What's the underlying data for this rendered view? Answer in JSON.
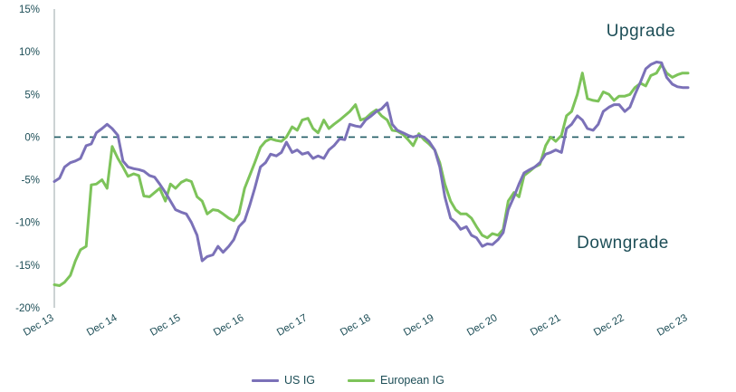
{
  "chart_data": {
    "type": "line",
    "ylim": [
      -20,
      15
    ],
    "y_ticks": [
      "15%",
      "10%",
      "5%",
      "0%",
      "-5%",
      "-10%",
      "-15%",
      "-20%"
    ],
    "x_ticks": [
      "Dec 13",
      "Dec 14",
      "Dec 15",
      "Dec 16",
      "Dec 17",
      "Dec 18",
      "Dec 19",
      "Dec 20",
      "Dec 21",
      "Dec 22",
      "Dec 23"
    ],
    "x_range_years": [
      2013.917,
      2023.917
    ],
    "reference_line": 0,
    "annotations": {
      "upper": "Upgrade",
      "lower": "Downgrade"
    },
    "legend_position": "bottom",
    "series": [
      {
        "name": "US IG",
        "color": "#7b71b8",
        "points": [
          [
            2013.917,
            -5.2
          ],
          [
            2014.0,
            -4.8
          ],
          [
            2014.08,
            -3.5
          ],
          [
            2014.17,
            -3.0
          ],
          [
            2014.25,
            -2.8
          ],
          [
            2014.33,
            -2.5
          ],
          [
            2014.42,
            -1.0
          ],
          [
            2014.5,
            -0.8
          ],
          [
            2014.58,
            0.5
          ],
          [
            2014.67,
            1.0
          ],
          [
            2014.75,
            1.5
          ],
          [
            2014.83,
            1.0
          ],
          [
            2014.92,
            0.2
          ],
          [
            2015.0,
            -2.8
          ],
          [
            2015.08,
            -3.5
          ],
          [
            2015.17,
            -3.7
          ],
          [
            2015.25,
            -3.8
          ],
          [
            2015.33,
            -4.0
          ],
          [
            2015.42,
            -4.5
          ],
          [
            2015.5,
            -4.7
          ],
          [
            2015.58,
            -5.5
          ],
          [
            2015.67,
            -6.5
          ],
          [
            2015.75,
            -7.5
          ],
          [
            2015.83,
            -8.5
          ],
          [
            2015.92,
            -8.8
          ],
          [
            2016.0,
            -9.0
          ],
          [
            2016.08,
            -10.0
          ],
          [
            2016.17,
            -11.5
          ],
          [
            2016.25,
            -14.5
          ],
          [
            2016.33,
            -14.0
          ],
          [
            2016.42,
            -13.8
          ],
          [
            2016.5,
            -12.8
          ],
          [
            2016.58,
            -13.5
          ],
          [
            2016.67,
            -12.8
          ],
          [
            2016.75,
            -12.0
          ],
          [
            2016.83,
            -10.5
          ],
          [
            2016.92,
            -9.8
          ],
          [
            2017.0,
            -8.0
          ],
          [
            2017.08,
            -6.0
          ],
          [
            2017.17,
            -3.5
          ],
          [
            2017.25,
            -3.0
          ],
          [
            2017.33,
            -2.0
          ],
          [
            2017.42,
            -2.2
          ],
          [
            2017.5,
            -1.8
          ],
          [
            2017.58,
            -0.6
          ],
          [
            2017.67,
            -1.8
          ],
          [
            2017.75,
            -1.5
          ],
          [
            2017.83,
            -2.0
          ],
          [
            2017.92,
            -1.8
          ],
          [
            2018.0,
            -2.5
          ],
          [
            2018.08,
            -2.2
          ],
          [
            2018.17,
            -2.5
          ],
          [
            2018.25,
            -1.5
          ],
          [
            2018.33,
            -1.0
          ],
          [
            2018.42,
            -0.2
          ],
          [
            2018.5,
            -0.3
          ],
          [
            2018.58,
            1.5
          ],
          [
            2018.67,
            1.3
          ],
          [
            2018.75,
            1.2
          ],
          [
            2018.83,
            2.0
          ],
          [
            2018.92,
            2.5
          ],
          [
            2019.0,
            3.0
          ],
          [
            2019.08,
            3.3
          ],
          [
            2019.17,
            4.0
          ],
          [
            2019.25,
            1.5
          ],
          [
            2019.33,
            0.8
          ],
          [
            2019.42,
            0.5
          ],
          [
            2019.5,
            0.2
          ],
          [
            2019.58,
            0.0
          ],
          [
            2019.67,
            0.2
          ],
          [
            2019.75,
            0.0
          ],
          [
            2019.83,
            -0.5
          ],
          [
            2019.92,
            -1.5
          ],
          [
            2020.0,
            -3.5
          ],
          [
            2020.08,
            -7.0
          ],
          [
            2020.17,
            -9.5
          ],
          [
            2020.25,
            -10.0
          ],
          [
            2020.33,
            -10.8
          ],
          [
            2020.42,
            -10.5
          ],
          [
            2020.5,
            -11.5
          ],
          [
            2020.58,
            -11.8
          ],
          [
            2020.67,
            -12.8
          ],
          [
            2020.75,
            -12.5
          ],
          [
            2020.83,
            -12.6
          ],
          [
            2020.92,
            -12.0
          ],
          [
            2021.0,
            -11.2
          ],
          [
            2021.08,
            -8.5
          ],
          [
            2021.17,
            -7.0
          ],
          [
            2021.25,
            -5.5
          ],
          [
            2021.33,
            -4.2
          ],
          [
            2021.42,
            -3.8
          ],
          [
            2021.5,
            -3.5
          ],
          [
            2021.58,
            -3.0
          ],
          [
            2021.67,
            -2.0
          ],
          [
            2021.75,
            -1.8
          ],
          [
            2021.83,
            -1.5
          ],
          [
            2021.92,
            -1.8
          ],
          [
            2022.0,
            1.0
          ],
          [
            2022.08,
            1.5
          ],
          [
            2022.17,
            2.5
          ],
          [
            2022.25,
            2.0
          ],
          [
            2022.33,
            1.0
          ],
          [
            2022.42,
            0.8
          ],
          [
            2022.5,
            1.5
          ],
          [
            2022.58,
            3.0
          ],
          [
            2022.67,
            3.5
          ],
          [
            2022.75,
            3.8
          ],
          [
            2022.83,
            3.8
          ],
          [
            2022.92,
            3.0
          ],
          [
            2023.0,
            3.5
          ],
          [
            2023.08,
            5.0
          ],
          [
            2023.17,
            6.5
          ],
          [
            2023.25,
            8.0
          ],
          [
            2023.33,
            8.5
          ],
          [
            2023.42,
            8.8
          ],
          [
            2023.5,
            8.7
          ],
          [
            2023.58,
            7.0
          ],
          [
            2023.67,
            6.2
          ],
          [
            2023.75,
            5.9
          ],
          [
            2023.83,
            5.8
          ],
          [
            2023.917,
            5.8
          ]
        ]
      },
      {
        "name": "European IG",
        "color": "#7dc35a",
        "points": [
          [
            2013.917,
            -17.3
          ],
          [
            2014.0,
            -17.4
          ],
          [
            2014.08,
            -17.0
          ],
          [
            2014.17,
            -16.2
          ],
          [
            2014.25,
            -14.5
          ],
          [
            2014.33,
            -13.2
          ],
          [
            2014.42,
            -12.8
          ],
          [
            2014.5,
            -5.6
          ],
          [
            2014.58,
            -5.5
          ],
          [
            2014.67,
            -5.0
          ],
          [
            2014.75,
            -6.0
          ],
          [
            2014.83,
            -1.1
          ],
          [
            2014.92,
            -2.5
          ],
          [
            2015.0,
            -3.5
          ],
          [
            2015.08,
            -4.6
          ],
          [
            2015.17,
            -4.3
          ],
          [
            2015.25,
            -4.5
          ],
          [
            2015.33,
            -6.9
          ],
          [
            2015.42,
            -7.0
          ],
          [
            2015.5,
            -6.5
          ],
          [
            2015.58,
            -6.0
          ],
          [
            2015.67,
            -7.5
          ],
          [
            2015.75,
            -5.5
          ],
          [
            2015.83,
            -6.0
          ],
          [
            2015.92,
            -5.3
          ],
          [
            2016.0,
            -5.0
          ],
          [
            2016.08,
            -5.2
          ],
          [
            2016.17,
            -7.0
          ],
          [
            2016.25,
            -7.5
          ],
          [
            2016.33,
            -9.0
          ],
          [
            2016.42,
            -8.5
          ],
          [
            2016.5,
            -8.6
          ],
          [
            2016.58,
            -9.0
          ],
          [
            2016.67,
            -9.5
          ],
          [
            2016.75,
            -9.8
          ],
          [
            2016.83,
            -9.0
          ],
          [
            2016.92,
            -6.0
          ],
          [
            2017.0,
            -4.5
          ],
          [
            2017.08,
            -3.0
          ],
          [
            2017.17,
            -1.2
          ],
          [
            2017.25,
            -0.5
          ],
          [
            2017.33,
            -0.2
          ],
          [
            2017.42,
            -0.4
          ],
          [
            2017.5,
            -0.5
          ],
          [
            2017.58,
            0.0
          ],
          [
            2017.67,
            1.2
          ],
          [
            2017.75,
            0.8
          ],
          [
            2017.83,
            2.0
          ],
          [
            2017.92,
            2.2
          ],
          [
            2018.0,
            1.0
          ],
          [
            2018.08,
            0.5
          ],
          [
            2018.17,
            2.0
          ],
          [
            2018.25,
            1.0
          ],
          [
            2018.33,
            1.5
          ],
          [
            2018.42,
            2.0
          ],
          [
            2018.5,
            2.5
          ],
          [
            2018.58,
            3.0
          ],
          [
            2018.67,
            3.8
          ],
          [
            2018.75,
            2.0
          ],
          [
            2018.83,
            2.2
          ],
          [
            2018.92,
            2.8
          ],
          [
            2019.0,
            3.2
          ],
          [
            2019.08,
            2.5
          ],
          [
            2019.17,
            2.0
          ],
          [
            2019.25,
            0.8
          ],
          [
            2019.33,
            0.7
          ],
          [
            2019.42,
            0.3
          ],
          [
            2019.5,
            -0.3
          ],
          [
            2019.58,
            -1.0
          ],
          [
            2019.67,
            0.4
          ],
          [
            2019.75,
            -0.3
          ],
          [
            2019.83,
            -0.8
          ],
          [
            2019.92,
            -1.5
          ],
          [
            2020.0,
            -3.0
          ],
          [
            2020.08,
            -5.5
          ],
          [
            2020.17,
            -7.5
          ],
          [
            2020.25,
            -8.5
          ],
          [
            2020.33,
            -9.0
          ],
          [
            2020.42,
            -9.0
          ],
          [
            2020.5,
            -9.5
          ],
          [
            2020.58,
            -10.5
          ],
          [
            2020.67,
            -11.5
          ],
          [
            2020.75,
            -11.8
          ],
          [
            2020.83,
            -11.3
          ],
          [
            2020.92,
            -11.5
          ],
          [
            2021.0,
            -10.8
          ],
          [
            2021.08,
            -7.5
          ],
          [
            2021.17,
            -6.5
          ],
          [
            2021.25,
            -7.0
          ],
          [
            2021.33,
            -4.5
          ],
          [
            2021.42,
            -4.0
          ],
          [
            2021.5,
            -3.5
          ],
          [
            2021.58,
            -3.2
          ],
          [
            2021.67,
            -1.0
          ],
          [
            2021.75,
            0.0
          ],
          [
            2021.83,
            -0.5
          ],
          [
            2021.92,
            0.2
          ],
          [
            2022.0,
            2.5
          ],
          [
            2022.08,
            3.0
          ],
          [
            2022.17,
            5.0
          ],
          [
            2022.25,
            7.5
          ],
          [
            2022.33,
            4.5
          ],
          [
            2022.42,
            4.3
          ],
          [
            2022.5,
            4.2
          ],
          [
            2022.58,
            5.3
          ],
          [
            2022.67,
            5.0
          ],
          [
            2022.75,
            4.3
          ],
          [
            2022.83,
            4.8
          ],
          [
            2022.92,
            4.8
          ],
          [
            2023.0,
            5.0
          ],
          [
            2023.08,
            5.8
          ],
          [
            2023.17,
            6.3
          ],
          [
            2023.25,
            6.0
          ],
          [
            2023.33,
            7.2
          ],
          [
            2023.42,
            7.5
          ],
          [
            2023.5,
            8.5
          ],
          [
            2023.58,
            7.5
          ],
          [
            2023.67,
            7.0
          ],
          [
            2023.75,
            7.3
          ],
          [
            2023.83,
            7.5
          ],
          [
            2023.917,
            7.5
          ]
        ]
      }
    ]
  }
}
